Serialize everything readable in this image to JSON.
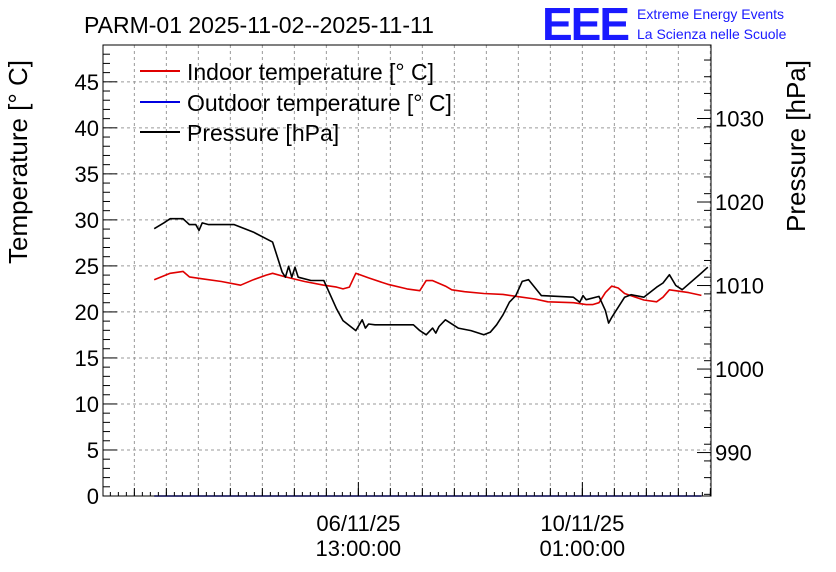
{
  "header": {
    "title": "PARM-01 2025-11-02--2025-11-11",
    "logo_text": "EEE",
    "org_line1": "Extreme Energy Events",
    "org_line2": "La Scienza nelle Scuole"
  },
  "colors": {
    "indoor": "#e00000",
    "outdoor": "#0000e0",
    "pressure": "#000000",
    "logo": "#1a1aff",
    "grid": "#9a9a9a"
  },
  "chart_data": {
    "type": "line",
    "title": "PARM-01 2025-11-02--2025-11-11",
    "ylabel": "Temperature [° C]",
    "y2label": "Pressure [hPa]",
    "xlabel": "",
    "ylim": [
      0,
      49
    ],
    "y2lim": [
      984.8,
      1038.8
    ],
    "x_unit": "days since 2025-11-02 00:00",
    "xlim": [
      0.55,
      10.05
    ],
    "y_ticks": [
      0,
      5,
      10,
      15,
      20,
      25,
      30,
      35,
      40,
      45
    ],
    "y2_ticks": [
      990,
      1000,
      1010,
      1020,
      1030
    ],
    "x_ticks": [
      {
        "x": 4.54,
        "date": "06/11/25",
        "time": "13:00:00"
      },
      {
        "x": 8.04,
        "date": "10/11/25",
        "time": "01:00:00"
      }
    ],
    "legend": {
      "position": "top-left",
      "entries": [
        "Indoor temperature [° C]",
        "Outdoor temperature [° C]",
        "Pressure [hPa]"
      ]
    },
    "series": [
      {
        "name": "Indoor temperature [° C]",
        "axis": "left",
        "x": [
          1.35,
          1.6,
          1.8,
          1.9,
          2.1,
          2.4,
          2.7,
          2.9,
          3.1,
          3.2,
          3.4,
          3.7,
          4.0,
          4.2,
          4.3,
          4.4,
          4.5,
          4.7,
          5.0,
          5.3,
          5.5,
          5.6,
          5.7,
          5.9,
          6.0,
          6.2,
          6.5,
          6.8,
          7.0,
          7.3,
          7.5,
          7.9,
          8.1,
          8.2,
          8.3,
          8.4,
          8.5,
          8.6,
          8.7,
          9.0,
          9.2,
          9.3,
          9.4,
          9.7,
          9.9
        ],
        "values": [
          23.5,
          24.2,
          24.4,
          23.8,
          23.6,
          23.3,
          22.9,
          23.5,
          24.0,
          24.2,
          23.8,
          23.3,
          22.9,
          22.7,
          22.5,
          22.7,
          24.2,
          23.7,
          23.0,
          22.5,
          22.3,
          23.4,
          23.4,
          22.8,
          22.4,
          22.2,
          22.0,
          21.9,
          21.7,
          21.4,
          21.1,
          21.0,
          20.8,
          20.8,
          21.0,
          22.1,
          22.8,
          22.6,
          22.0,
          21.3,
          21.1,
          21.6,
          22.4,
          22.1,
          21.8
        ]
      },
      {
        "name": "Outdoor temperature [° C]",
        "axis": "left",
        "x": [
          1.35,
          9.9
        ],
        "values": [
          0.0,
          0.0
        ]
      },
      {
        "name": "Pressure [hPa]",
        "axis": "right",
        "x": [
          1.35,
          1.5,
          1.6,
          1.8,
          1.9,
          2.0,
          2.05,
          2.1,
          2.2,
          2.6,
          2.9,
          3.2,
          3.3,
          3.35,
          3.4,
          3.45,
          3.5,
          3.55,
          3.6,
          3.8,
          4.0,
          4.1,
          4.2,
          4.3,
          4.5,
          4.6,
          4.65,
          4.7,
          4.8,
          5.0,
          5.4,
          5.5,
          5.6,
          5.7,
          5.75,
          5.8,
          5.9,
          6.1,
          6.3,
          6.5,
          6.6,
          6.7,
          6.8,
          6.9,
          7.0,
          7.1,
          7.2,
          7.4,
          7.9,
          8.0,
          8.05,
          8.1,
          8.3,
          8.4,
          8.45,
          8.5,
          8.7,
          8.8,
          9.0,
          9.2,
          9.3,
          9.4,
          9.5,
          9.6,
          9.9,
          10.0
        ],
        "values": [
          1016.8,
          1017.5,
          1018.0,
          1018.0,
          1017.3,
          1017.3,
          1016.6,
          1017.5,
          1017.3,
          1017.3,
          1016.4,
          1015.2,
          1012.8,
          1011.6,
          1011.0,
          1012.3,
          1011.0,
          1012.2,
          1011.0,
          1010.6,
          1010.6,
          1008.9,
          1007.2,
          1005.8,
          1004.6,
          1005.9,
          1004.9,
          1005.4,
          1005.3,
          1005.3,
          1005.3,
          1004.6,
          1004.1,
          1004.9,
          1004.3,
          1005.1,
          1005.9,
          1004.9,
          1004.6,
          1004.1,
          1004.4,
          1005.3,
          1006.5,
          1008.0,
          1008.8,
          1010.5,
          1010.7,
          1008.8,
          1008.6,
          1008.0,
          1008.8,
          1008.3,
          1008.7,
          1007.0,
          1005.5,
          1006.2,
          1008.6,
          1008.9,
          1008.6,
          1009.8,
          1010.3,
          1011.3,
          1010.0,
          1009.5,
          1011.5,
          1012.2
        ]
      }
    ]
  }
}
